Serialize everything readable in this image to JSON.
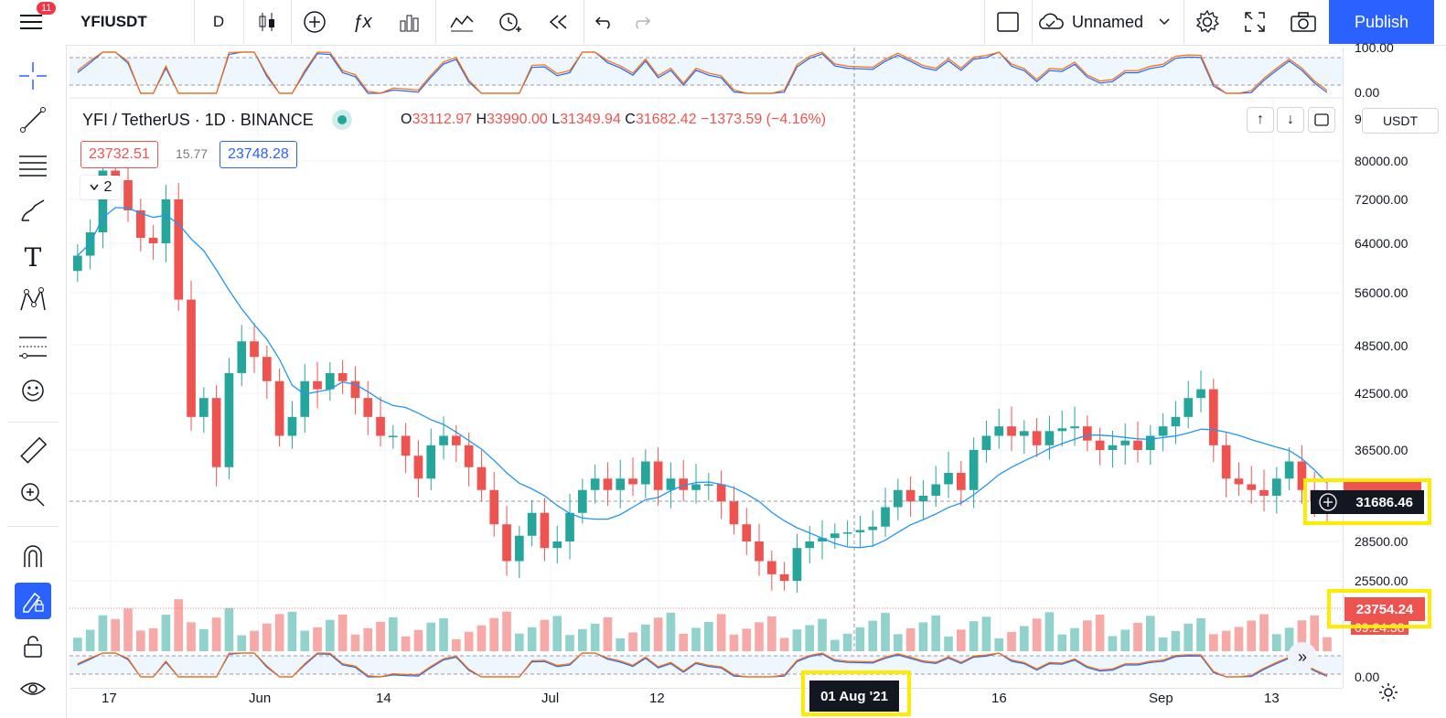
{
  "app": {
    "notifications": "11",
    "symbol": "YFIUSDT",
    "interval": "D",
    "layout_name": "Unnamed",
    "publish": "Publish"
  },
  "legend": {
    "title": "YFI / TetherUS · 1D · BINANCE",
    "ohlc": [
      {
        "k": "O",
        "v": "33112.97"
      },
      {
        "k": "H",
        "v": "33990.00"
      },
      {
        "k": "L",
        "v": "31349.94"
      },
      {
        "k": "C",
        "v": "31682.42"
      }
    ],
    "change": "−1373.59 (−4.16%)",
    "indicator_red": "23732.51",
    "indicator_mid": "15.77",
    "indicator_blue": "23748.28",
    "collapse_count": "2"
  },
  "price_scale": {
    "currency": "USDT",
    "labels": [
      "80000.00",
      "72000.00",
      "64000.00",
      "56000.00",
      "48500.00",
      "42500.00",
      "36500.00",
      "28500.00",
      "25500.00"
    ],
    "top_osc": [
      "100.00",
      "0.00"
    ],
    "bottom_osc": "0.00",
    "clipped_top": "9",
    "clipped_low": "09.24.38",
    "current_price": "31686.46",
    "volume_value": "23754.24"
  },
  "time_scale": {
    "labels": [
      {
        "t": "17",
        "x": 121
      },
      {
        "t": "Jun",
        "x": 282
      },
      {
        "t": "14",
        "x": 421
      },
      {
        "t": "Jul",
        "x": 602
      },
      {
        "t": "12",
        "x": 720
      },
      {
        "t": "16",
        "x": 1094
      },
      {
        "t": "Sep",
        "x": 1266
      },
      {
        "t": "13",
        "x": 1392
      }
    ],
    "crosshair_date": "01 Aug '21"
  },
  "colors": {
    "up": "#26a69a",
    "down": "#ef5350",
    "ma": "#2196f3",
    "accent": "#2962ff",
    "highlight": "#ffeb00"
  },
  "chart_data": {
    "type": "candlestick",
    "symbol": "YFI / TetherUS",
    "interval": "1D",
    "exchange": "BINANCE",
    "y_labels": [
      25500,
      28500,
      36500,
      42500,
      48500,
      56000,
      64000,
      72000,
      80000
    ],
    "close_series": [
      62000,
      66000,
      78000,
      76000,
      70000,
      65000,
      64000,
      72000,
      55000,
      40000,
      42000,
      35000,
      45000,
      49000,
      47000,
      44000,
      38000,
      40000,
      44000,
      43000,
      45000,
      44000,
      42000,
      40000,
      38000,
      38000,
      36000,
      34000,
      37000,
      38000,
      37000,
      35000,
      33000,
      30000,
      27000,
      29000,
      31000,
      28000,
      28500,
      31000,
      33000,
      34000,
      33000,
      34000,
      33500,
      35500,
      33000,
      34000,
      33000,
      33500,
      33500,
      32000,
      30000,
      28500,
      27000,
      26000,
      25500,
      28000,
      28500,
      28800,
      29200,
      29300,
      29500,
      29800,
      31500,
      33000,
      32000,
      32500,
      33500,
      34500,
      33000,
      36500,
      38000,
      39000,
      38000,
      38500,
      37000,
      38500,
      38800,
      39000,
      37500,
      36500,
      37000,
      37500,
      36500,
      38000,
      39000,
      40000,
      42000,
      43000,
      37000,
      34000,
      33500,
      33000,
      32500,
      34000,
      35500,
      33000,
      32000,
      31682
    ]
  }
}
